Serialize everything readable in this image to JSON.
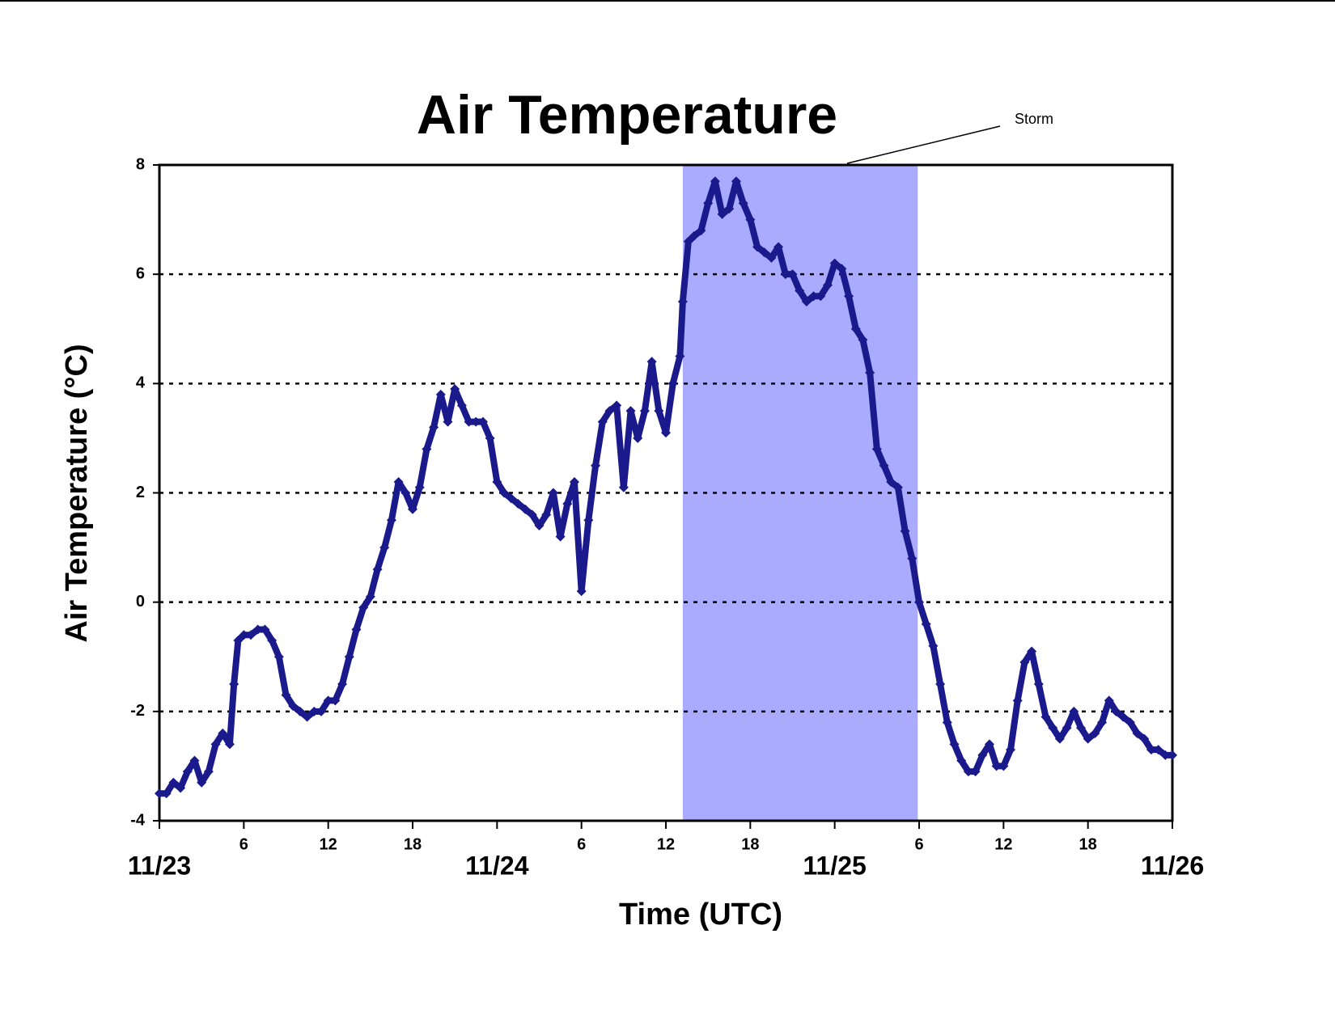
{
  "chart_data": {
    "type": "scatter",
    "title": "Air Temperature",
    "x_label": "Time (UTC)",
    "y_label": "Air Temperature (°C)",
    "annotation": {
      "label": "Storm",
      "start": 37.2,
      "end": 53.9,
      "color": "#aaaaff"
    },
    "series": [
      {
        "name": "Air Temperature",
        "color": "#1a1a8c",
        "x": [
          0,
          0.5,
          1,
          1.5,
          2,
          2.5,
          3,
          3.5,
          4,
          4.5,
          5,
          5.3,
          5.6,
          6,
          6.5,
          7,
          7.5,
          8,
          8.5,
          9,
          9.5,
          10,
          10.5,
          11,
          11.5,
          12,
          12.5,
          13,
          13.5,
          14,
          14.5,
          15,
          15.5,
          16,
          16.5,
          17,
          17.5,
          18,
          18.5,
          19,
          19.5,
          20,
          20.5,
          21,
          21.5,
          22,
          22.5,
          23,
          23.5,
          24,
          24.5,
          25,
          25.5,
          26,
          26.5,
          27,
          27.5,
          28,
          28.5,
          29,
          29.5,
          30,
          30.5,
          31,
          31.5,
          32,
          32.5,
          33,
          33.5,
          34,
          34.5,
          35,
          35.5,
          36,
          36.5,
          37,
          37.2,
          37.6,
          38,
          38.5,
          39,
          39.5,
          40,
          40.5,
          41,
          41.5,
          42,
          42.5,
          43,
          43.5,
          44,
          44.5,
          45,
          45.5,
          46,
          46.5,
          47,
          47.5,
          48,
          48.5,
          49,
          49.5,
          50,
          50.5,
          51,
          51.5,
          52,
          52.5,
          53,
          53.5,
          54,
          54.5,
          55,
          55.5,
          56,
          56.5,
          57,
          57.5,
          58,
          58.5,
          59,
          59.5,
          60,
          60.5,
          61,
          61.5,
          62,
          62.5,
          63,
          63.5,
          64,
          64.5,
          65,
          65.5,
          66,
          66.5,
          67,
          67.5,
          68,
          68.5,
          69,
          69.5,
          70,
          70.5,
          71,
          71.5,
          72
        ],
        "values": [
          -3.5,
          -3.5,
          -3.3,
          -3.4,
          -3.1,
          -2.9,
          -3.3,
          -3.1,
          -2.6,
          -2.4,
          -2.6,
          -1.5,
          -0.7,
          -0.6,
          -0.6,
          -0.5,
          -0.5,
          -0.7,
          -1.0,
          -1.7,
          -1.9,
          -2.0,
          -2.1,
          -2.0,
          -2.0,
          -1.8,
          -1.8,
          -1.5,
          -1.0,
          -0.5,
          -0.1,
          0.1,
          0.6,
          1.0,
          1.5,
          2.2,
          2.0,
          1.7,
          2.1,
          2.8,
          3.2,
          3.8,
          3.3,
          3.9,
          3.6,
          3.3,
          3.3,
          3.3,
          3.0,
          2.2,
          2.0,
          1.9,
          1.8,
          1.7,
          1.6,
          1.4,
          1.6,
          2.0,
          1.2,
          1.8,
          2.2,
          0.2,
          1.5,
          2.5,
          3.3,
          3.5,
          3.6,
          2.1,
          3.5,
          3.0,
          3.5,
          4.4,
          3.5,
          3.1,
          4.0,
          4.5,
          5.5,
          6.6,
          6.7,
          6.8,
          7.3,
          7.7,
          7.1,
          7.2,
          7.7,
          7.3,
          7.0,
          6.5,
          6.4,
          6.3,
          6.5,
          6.0,
          6.0,
          5.7,
          5.5,
          5.6,
          5.6,
          5.8,
          6.2,
          6.1,
          5.6,
          5.0,
          4.8,
          4.2,
          2.8,
          2.5,
          2.2,
          2.1,
          1.3,
          0.8,
          0.0,
          -0.4,
          -0.8,
          -1.5,
          -2.2,
          -2.6,
          -2.9,
          -3.1,
          -3.1,
          -2.8,
          -2.6,
          -3.0,
          -3.0,
          -2.7,
          -1.8,
          -1.1,
          -0.9,
          -1.5,
          -2.1,
          -2.3,
          -2.5,
          -2.3,
          -2.0,
          -2.3,
          -2.5,
          -2.4,
          -2.2,
          -1.8,
          -2.0,
          -2.1,
          -2.2,
          -2.4,
          -2.5,
          -2.7,
          -2.7,
          -2.8,
          -2.8
        ]
      }
    ],
    "xlim": [
      0,
      72
    ],
    "xticks": [
      {
        "value": 0,
        "label": "11/23"
      },
      6,
      12,
      18,
      {
        "value": 24,
        "label": "11/24"
      },
      {
        "value": 30,
        "label": "6"
      },
      {
        "value": 36,
        "label": "12"
      },
      {
        "value": 42,
        "label": "18"
      },
      {
        "value": 48,
        "label": "11/25"
      },
      {
        "value": 54,
        "label": "6"
      },
      {
        "value": 60,
        "label": "12"
      },
      {
        "value": 66,
        "label": "18"
      },
      {
        "value": 72,
        "label": "11/26"
      }
    ],
    "ylim": [
      -4,
      8
    ],
    "yticks": [
      -4,
      -2,
      0,
      2,
      4,
      6,
      8
    ],
    "grid": true
  }
}
